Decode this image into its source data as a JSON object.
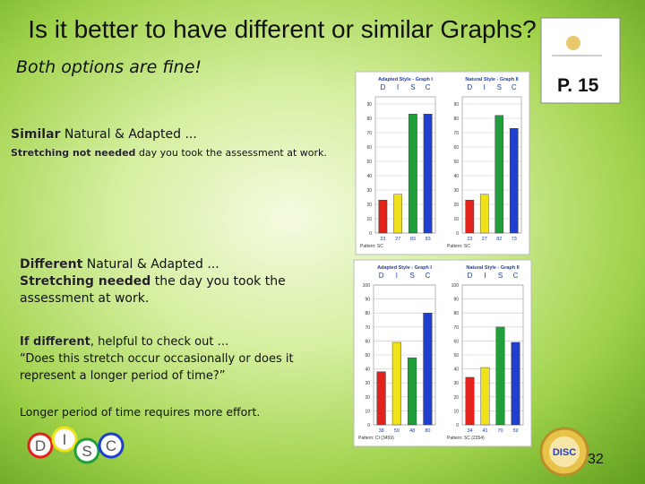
{
  "title": "Is it better to have different or similar Graphs?",
  "subtitle": "Both options are fine!",
  "page_ref": "P. 15",
  "similar": {
    "label": "Similar",
    "text": "Natural & Adapted ...",
    "stretch_label": "Stretching not needed",
    "stretch_text": "day you took the assessment at work."
  },
  "different": {
    "label": "Different",
    "text": "Natural & Adapted ...",
    "stretch_label": "Stretching needed",
    "stretch_text": "the day you took the assessment at work."
  },
  "if_different": {
    "label": "If different",
    "text": ", helpful to check out …",
    "quote": "“Does this stretch occur occasionally or does it represent a longer period of time?”"
  },
  "footer": "Longer period of time requires more effort.",
  "disc_logo": [
    "D",
    "I",
    "S",
    "C"
  ],
  "seal": "DISC",
  "slide_number": "32",
  "bar_colors": [
    "#e3221c",
    "#efe21a",
    "#1f9e3a",
    "#1f3fd0"
  ],
  "graphs": [
    {
      "title": "Adapted Style - Graph I",
      "letters": [
        "D",
        "I",
        "S",
        "C"
      ],
      "values": [
        23,
        27,
        83,
        83
      ],
      "ylim": [
        0,
        95
      ],
      "yticks": [
        0,
        10,
        20,
        30,
        40,
        50,
        60,
        70,
        80,
        90
      ],
      "pattern": "Pattern: SC"
    },
    {
      "title": "Natural Style - Graph II",
      "letters": [
        "D",
        "I",
        "S",
        "C"
      ],
      "values": [
        23,
        27,
        82,
        73
      ],
      "ylim": [
        0,
        95
      ],
      "yticks": [
        0,
        10,
        20,
        30,
        40,
        50,
        60,
        70,
        80,
        90
      ],
      "pattern": "Pattern: SC"
    },
    {
      "title": "Adapted Style - Graph I",
      "letters": [
        "D",
        "I",
        "S",
        "C"
      ],
      "values": [
        38,
        59,
        48,
        80
      ],
      "ylim": [
        0,
        100
      ],
      "yticks": [
        0,
        10,
        20,
        30,
        40,
        50,
        60,
        70,
        80,
        90,
        100
      ],
      "pattern": "Pattern: CI (3459)"
    },
    {
      "title": "Natural Style - Graph II",
      "letters": [
        "D",
        "I",
        "S",
        "C"
      ],
      "values": [
        34,
        41,
        70,
        59
      ],
      "ylim": [
        0,
        100
      ],
      "yticks": [
        0,
        10,
        20,
        30,
        40,
        50,
        60,
        70,
        80,
        90,
        100
      ],
      "pattern": "Pattern: SC (2354)"
    }
  ]
}
